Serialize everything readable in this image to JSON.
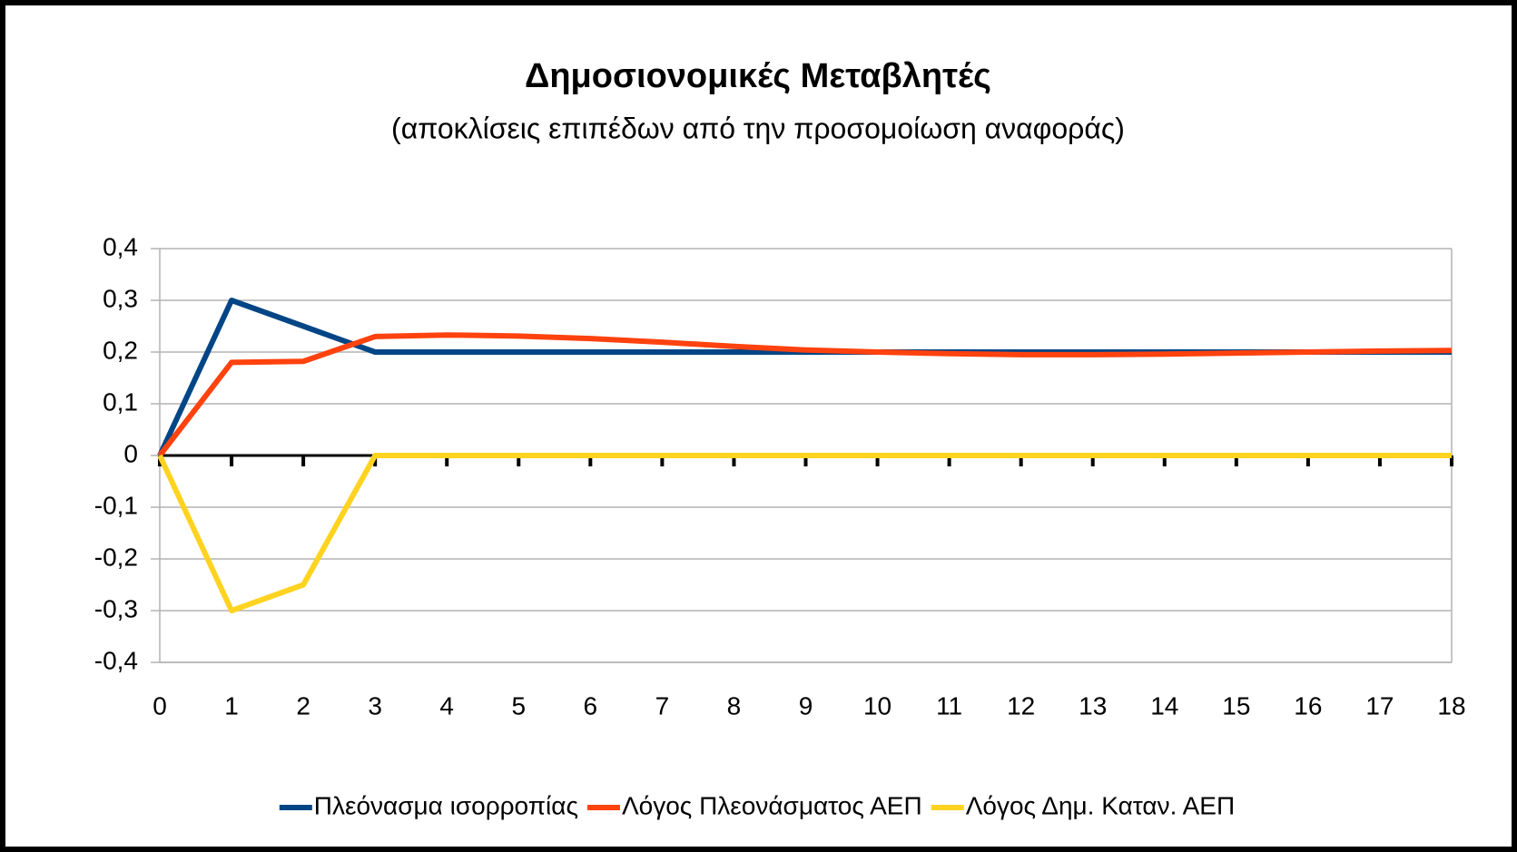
{
  "chart_data": {
    "type": "line",
    "title": "Δημοσιονομικές Μεταβλητές",
    "subtitle": "(αποκλίσεις επιπέδων από την προσομοίωση αναφοράς)",
    "x": [
      0,
      1,
      2,
      3,
      4,
      5,
      6,
      7,
      8,
      9,
      10,
      11,
      12,
      13,
      14,
      15,
      16,
      17,
      18
    ],
    "xlim": [
      0,
      18
    ],
    "xticks": [
      0,
      1,
      2,
      3,
      4,
      5,
      6,
      7,
      8,
      9,
      10,
      11,
      12,
      13,
      14,
      15,
      16,
      17,
      18
    ],
    "ylim": [
      -0.4,
      0.4
    ],
    "yticks": [
      {
        "value": -0.4,
        "label": "-0,4"
      },
      {
        "value": -0.3,
        "label": "-0,3"
      },
      {
        "value": -0.2,
        "label": "-0,2"
      },
      {
        "value": -0.1,
        "label": "-0,1"
      },
      0,
      {
        "value": 0.1,
        "label": "0,1"
      },
      {
        "value": 0.2,
        "label": "0,2"
      },
      {
        "value": 0.3,
        "label": "0,3"
      },
      {
        "value": 0.4,
        "label": "0,4"
      }
    ],
    "grid": true,
    "legend": "bottom",
    "series": [
      {
        "name": "Πλεόνασμα ισορροπίας",
        "color": "#004586",
        "values": [
          0,
          0.3,
          0.25,
          0.2,
          0.2,
          0.2,
          0.2,
          0.2,
          0.2,
          0.2,
          0.2,
          0.2,
          0.2,
          0.2,
          0.2,
          0.2,
          0.2,
          0.2,
          0.2
        ]
      },
      {
        "name": "Λόγος Πλεονάσματος ΑΕΠ",
        "color": "#ff420e",
        "values": [
          0,
          0.18,
          0.182,
          0.23,
          0.233,
          0.231,
          0.226,
          0.219,
          0.211,
          0.204,
          0.2,
          0.197,
          0.195,
          0.195,
          0.196,
          0.198,
          0.2,
          0.202,
          0.203
        ]
      },
      {
        "name": "Λόγος Δημ. Καταν. ΑΕΠ",
        "color": "#ffd320",
        "values": [
          0,
          -0.3,
          -0.25,
          0,
          0,
          0,
          0,
          0,
          0,
          0,
          0,
          0,
          0,
          0,
          0,
          0,
          0,
          0,
          0
        ]
      }
    ]
  }
}
